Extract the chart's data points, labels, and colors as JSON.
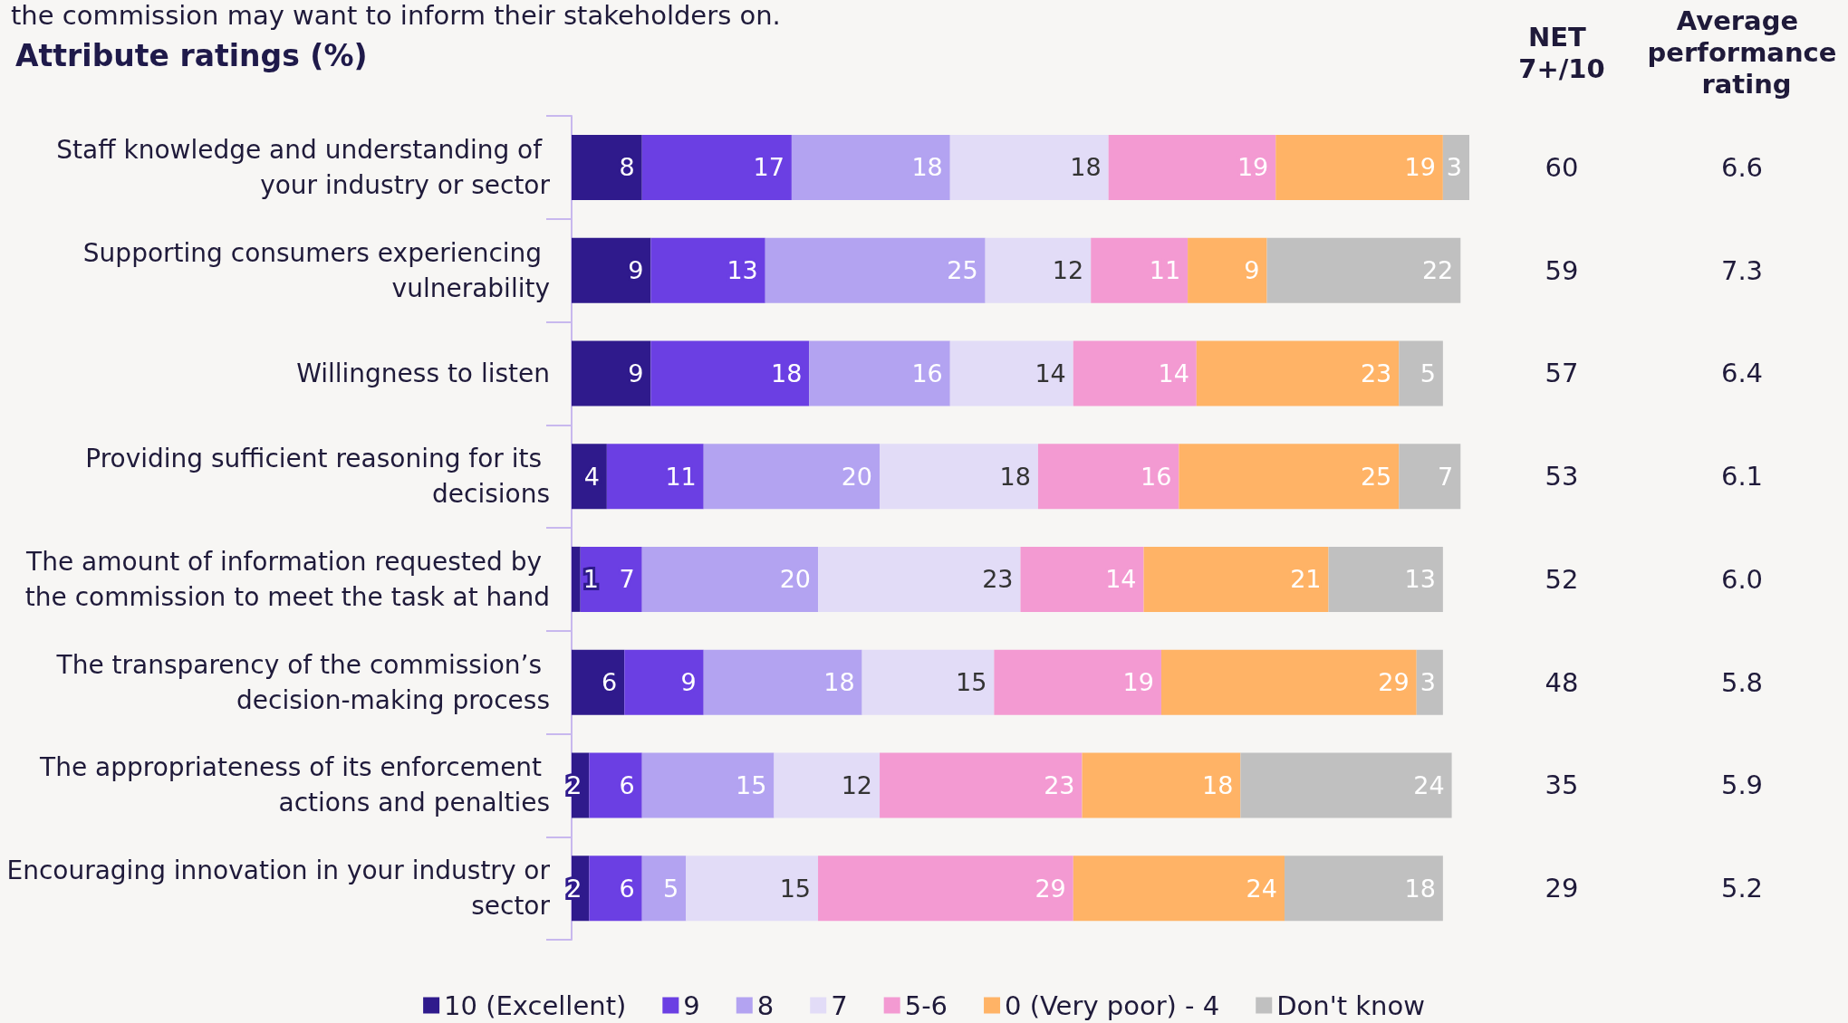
{
  "chart_data": {
    "type": "bar",
    "orientation": "horizontal",
    "stacked": true,
    "data_labels": true,
    "legend": "bottom",
    "title": "Attribute ratings (%)",
    "categories": [
      "Staff knowledge and understanding of your industry or sector",
      "Supporting consumers experiencing vulnerability",
      "Willingness to listen",
      "Providing sufficient reasoning for its decisions",
      "The amount of information requested by the commission to meet the task at hand",
      "The transparency of the commission’s decision-making process",
      "The appropriateness of its enforcement actions and penalties",
      "Encouraging innovation in your industry or sector"
    ],
    "series": [
      {
        "name": "10 (Excellent)",
        "color": "#2f1a8c",
        "values": [
          8,
          9,
          9,
          4,
          1,
          6,
          2,
          2
        ]
      },
      {
        "name": "9",
        "color": "#6b3fe3",
        "values": [
          17,
          13,
          18,
          11,
          7,
          9,
          6,
          6
        ]
      },
      {
        "name": "8",
        "color": "#b3a3f1",
        "values": [
          18,
          25,
          16,
          20,
          20,
          18,
          15,
          5
        ]
      },
      {
        "name": "7",
        "color": "#e2dcf7",
        "values": [
          18,
          12,
          14,
          18,
          23,
          15,
          12,
          15
        ]
      },
      {
        "name": "5-6",
        "color": "#f39ad2",
        "values": [
          19,
          11,
          14,
          16,
          14,
          19,
          23,
          29
        ]
      },
      {
        "name": "0 (Very poor) - 4",
        "color": "#ffb366",
        "values": [
          19,
          9,
          23,
          25,
          21,
          29,
          18,
          24
        ]
      },
      {
        "name": "Don't know",
        "color": "#c0c0c0",
        "values": [
          3,
          22,
          5,
          7,
          13,
          3,
          24,
          18
        ]
      }
    ],
    "annotations": [
      "the commission may want to inform their stakeholders on.",
      "NET 7+/10",
      "Average performance rating",
      "60",
      "59",
      "57",
      "53",
      "52",
      "48",
      "35",
      "29",
      "6.6",
      "7.3",
      "6.4",
      "6.1",
      "6.0",
      "5.8",
      "5.9",
      "5.2"
    ]
  }
}
